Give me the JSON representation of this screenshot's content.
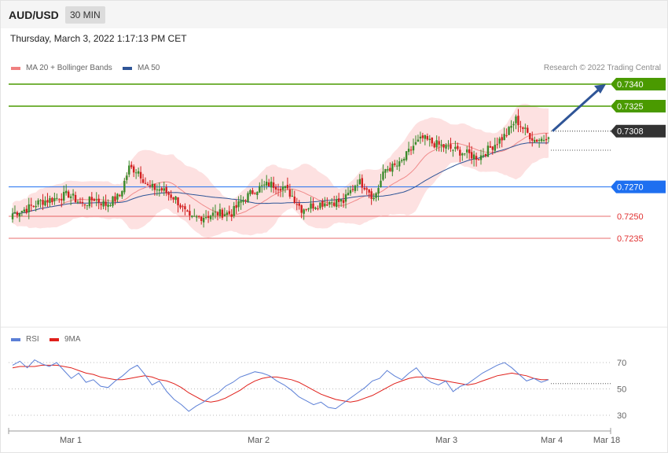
{
  "header": {
    "symbol": "AUD/USD",
    "timeframe": "30 MIN"
  },
  "timestamp": "Thursday, March 3, 2022 1:17:13 PM CET",
  "legend_main": [
    {
      "label": "MA 20 + Bollinger Bands",
      "color": "#f08080"
    },
    {
      "label": "MA 50",
      "color": "#2f5597"
    }
  ],
  "credit": "Research © 2022 Trading Central",
  "legend_rsi": [
    {
      "label": "RSI",
      "color": "#5b7fd6"
    },
    {
      "label": "9MA",
      "color": "#e0201b"
    }
  ],
  "chart_data": [
    {
      "type": "candlestick",
      "title": "AUD/USD 30 MIN",
      "ylim": [
        0.718,
        0.7348
      ],
      "x_ticks": [
        "Mar 1",
        "Mar 2",
        "Mar 3",
        "Mar 4",
        "Mar 18"
      ],
      "levels": [
        {
          "value": 0.734,
          "label": "0.7340",
          "kind": "resistance",
          "color": "#4a9a00"
        },
        {
          "value": 0.7325,
          "label": "0.7325",
          "kind": "resistance",
          "color": "#4a9a00"
        },
        {
          "value": 0.7308,
          "label": "0.7308",
          "kind": "last price",
          "color": "#333333"
        },
        {
          "value": 0.727,
          "label": "0.7270",
          "kind": "pivot",
          "color": "#1e6ff0"
        },
        {
          "value": 0.725,
          "label": "0.7250",
          "kind": "support",
          "color": "#e03030"
        },
        {
          "value": 0.7235,
          "label": "0.7235",
          "kind": "support",
          "color": "#e03030"
        }
      ],
      "colors": {
        "up": "#3a8a2a",
        "down": "#d21f1f",
        "bollinger": "#fde1e1",
        "ma20": "#f08a8a",
        "ma50": "#2f5597",
        "arrow": "#2f5597"
      },
      "grid": false,
      "legend_position": "top-left"
    },
    {
      "type": "line",
      "title": "RSI",
      "ylim": [
        20,
        80
      ],
      "y_ticks": [
        "70",
        "50",
        "30"
      ],
      "series": [
        {
          "name": "RSI",
          "color": "#5b7fd6",
          "values": [
            68,
            71,
            66,
            72,
            69,
            67,
            70,
            64,
            58,
            62,
            55,
            57,
            52,
            51,
            56,
            60,
            65,
            68,
            61,
            53,
            56,
            48,
            42,
            38,
            33,
            37,
            40,
            44,
            47,
            52,
            55,
            59,
            61,
            63,
            62,
            60,
            56,
            53,
            49,
            44,
            41,
            38,
            40,
            36,
            35,
            39,
            43,
            47,
            51,
            56,
            58,
            64,
            60,
            57,
            62,
            66,
            59,
            55,
            53,
            56,
            48,
            52,
            54,
            58,
            62,
            65,
            68,
            70,
            66,
            61,
            56,
            58,
            55,
            57
          ]
        },
        {
          "name": "9MA",
          "color": "#e0201b",
          "values": [
            66,
            67,
            67,
            67,
            68,
            68,
            68,
            67,
            66,
            64,
            62,
            61,
            59,
            58,
            57,
            57,
            58,
            59,
            60,
            59,
            57,
            56,
            54,
            51,
            47,
            44,
            41,
            40,
            41,
            43,
            46,
            49,
            53,
            56,
            58,
            59,
            59,
            58,
            57,
            55,
            52,
            49,
            46,
            44,
            42,
            41,
            40,
            41,
            43,
            45,
            48,
            51,
            54,
            56,
            58,
            59,
            59,
            58,
            57,
            56,
            55,
            54,
            53,
            54,
            56,
            58,
            60,
            61,
            62,
            61,
            60,
            58,
            57,
            57
          ]
        }
      ],
      "legend_position": "top-left"
    }
  ]
}
